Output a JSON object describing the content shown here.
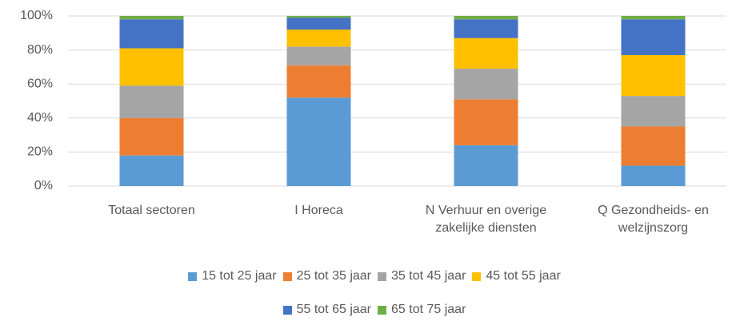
{
  "chart_data": {
    "type": "stacked_bar",
    "categories": [
      "Totaal sectoren",
      "I Horeca",
      "N Verhuur en overige zakelijke diensten",
      "Q Gezondheids- en welzijnszorg"
    ],
    "series": [
      {
        "name": "15 tot 25 jaar",
        "color": "#5b9bd5",
        "values": [
          18,
          52,
          24,
          12
        ]
      },
      {
        "name": "25 tot 35 jaar",
        "color": "#ed7d31",
        "values": [
          22,
          19,
          27,
          23
        ]
      },
      {
        "name": "35 tot 45 jaar",
        "color": "#a5a5a5",
        "values": [
          19,
          11,
          18,
          18
        ]
      },
      {
        "name": "45 tot 55 jaar",
        "color": "#ffc000",
        "values": [
          22,
          10,
          18,
          24
        ]
      },
      {
        "name": "55 tot 65 jaar",
        "color": "#4472c4",
        "values": [
          17,
          7,
          11,
          21
        ]
      },
      {
        "name": "65 tot 75 jaar",
        "color": "#70ad47",
        "values": [
          2,
          1,
          2,
          2
        ]
      }
    ],
    "ylim": [
      0,
      100
    ],
    "yticks": [
      {
        "value": 0,
        "label": "0%"
      },
      {
        "value": 20,
        "label": "20%"
      },
      {
        "value": 40,
        "label": "40%"
      },
      {
        "value": 60,
        "label": "60%"
      },
      {
        "value": 80,
        "label": "80%"
      },
      {
        "value": 100,
        "label": "100%"
      }
    ],
    "grid": true,
    "legend": "bottom"
  }
}
